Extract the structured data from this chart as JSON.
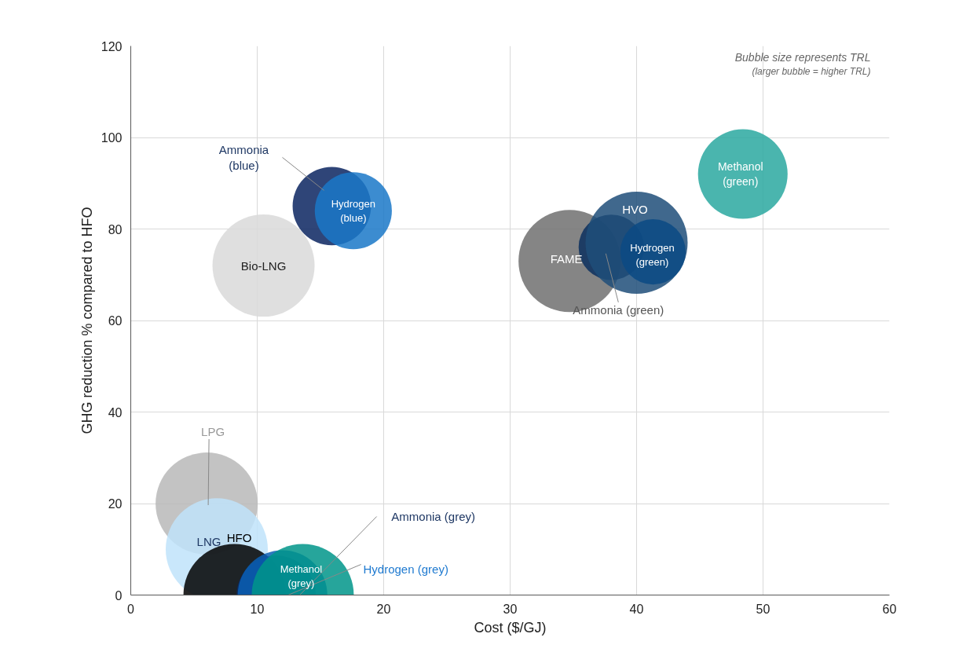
{
  "chart_data": {
    "type": "bubble",
    "xlabel": "Cost ($/GJ)",
    "ylabel": "GHG reduction % compared to HFO",
    "xlim": [
      0,
      60
    ],
    "xticks": [
      0,
      10,
      20,
      30,
      40,
      50,
      60
    ],
    "ylim": [
      0,
      120
    ],
    "yticks": [
      0,
      20,
      40,
      60,
      80,
      100,
      120
    ],
    "grid": true,
    "annotations": [
      "Bubble size represents TRL",
      "(larger bubble = higher TRL)"
    ],
    "series": [
      {
        "name": "LPG",
        "color": "#b8b8b8",
        "x": [
          6.0
        ],
        "values": [
          20
        ],
        "sizes": [
          1
        ]
      },
      {
        "name": "LNG",
        "color": "#bfe3fa",
        "x": [
          6.8
        ],
        "values": [
          10
        ],
        "sizes": [
          1
        ]
      },
      {
        "name": "HFO",
        "color": "#000000",
        "x": [
          8.2
        ],
        "values": [
          0
        ],
        "sizes": [
          1
        ]
      },
      {
        "name": "Ammonia (grey)",
        "color": "#0a2a66",
        "x": [
          11.5
        ],
        "values": [
          0
        ],
        "sizes": [
          0.6
        ]
      },
      {
        "name": "Hydrogen (grey)",
        "color": "#0a5fb4",
        "x": [
          12.0
        ],
        "values": [
          0
        ],
        "sizes": [
          0.77
        ]
      },
      {
        "name": "Methanol\n(grey)",
        "color": "#00958a",
        "x": [
          13.6
        ],
        "values": [
          0
        ],
        "sizes": [
          1
        ]
      },
      {
        "name": "Bio-LNG",
        "color": "#d9d9d9",
        "x": [
          10.5
        ],
        "values": [
          72
        ],
        "sizes": [
          1
        ]
      },
      {
        "name": "Ammonia\n(blue)",
        "color": "#0a2460",
        "x": [
          15.9
        ],
        "values": [
          85
        ],
        "sizes": [
          0.59
        ]
      },
      {
        "name": "Hydrogen\n(blue)",
        "color": "#1a78c8",
        "x": [
          17.6
        ],
        "values": [
          84
        ],
        "sizes": [
          0.57
        ]
      },
      {
        "name": "FAME",
        "color": "#707070",
        "x": [
          34.7
        ],
        "values": [
          73
        ],
        "sizes": [
          1
        ]
      },
      {
        "name": "Ammonia (green)",
        "color": "#0b2f5e",
        "x": [
          38.0
        ],
        "values": [
          76
        ],
        "sizes": [
          0.41
        ]
      },
      {
        "name": "HVO",
        "color": "#1f4e79",
        "x": [
          40.0
        ],
        "values": [
          77
        ],
        "sizes": [
          1
        ]
      },
      {
        "name": "Hydrogen\n(green)",
        "color": "#0a4a84",
        "x": [
          41.3
        ],
        "values": [
          75
        ],
        "sizes": [
          0.41
        ]
      },
      {
        "name": "Methanol\n(green)",
        "color": "#2aa8a0",
        "x": [
          48.4
        ],
        "values": [
          92
        ],
        "sizes": [
          0.77
        ]
      }
    ]
  }
}
